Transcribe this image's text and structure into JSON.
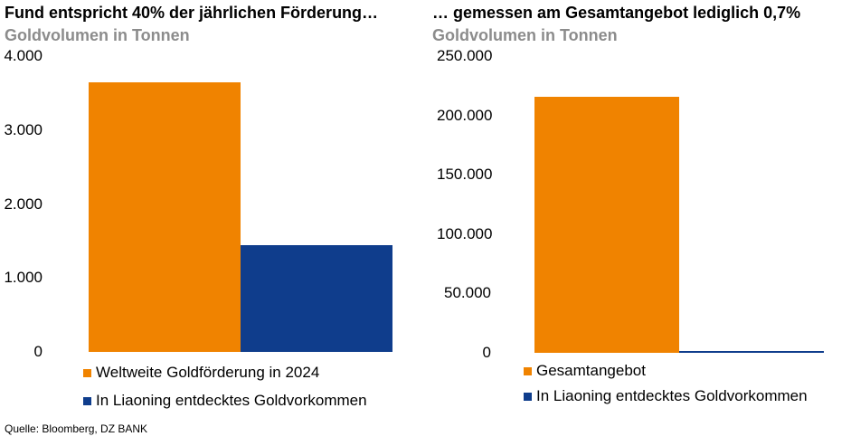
{
  "colors": {
    "orange": "#f08300",
    "blue": "#0f3d8c"
  },
  "source": "Quelle: Bloomberg, DZ BANK",
  "chart_data": [
    {
      "type": "bar",
      "title": "Fund entspricht 40% der jährlichen Förderung…",
      "subtitle": "Goldvolumen in Tonnen",
      "ylim": [
        0,
        4000
      ],
      "ticks": [
        "0",
        "1.000",
        "2.000",
        "3.000",
        "4.000"
      ],
      "tick_values": [
        0,
        1000,
        2000,
        3000,
        4000
      ],
      "series": [
        {
          "name": "Weltweite Goldförderung in 2024",
          "values": [
            3650
          ]
        },
        {
          "name": "In Liaoning entdecktes Goldvorkommen",
          "values": [
            1444
          ]
        }
      ],
      "legend": "bottom"
    },
    {
      "type": "bar",
      "title": "… gemessen am Gesamtangebot lediglich 0,7%",
      "subtitle": "Goldvolumen in Tonnen",
      "ylim": [
        0,
        250000
      ],
      "ticks": [
        "0",
        "50.000",
        "100.000",
        "150.000",
        "200.000",
        "250.000"
      ],
      "tick_values": [
        0,
        50000,
        100000,
        150000,
        200000,
        250000
      ],
      "series": [
        {
          "name": "Gesamtangebot",
          "values": [
            216000
          ]
        },
        {
          "name": "In Liaoning entdecktes Goldvorkommen",
          "values": [
            1444
          ]
        }
      ],
      "legend": "bottom"
    }
  ]
}
